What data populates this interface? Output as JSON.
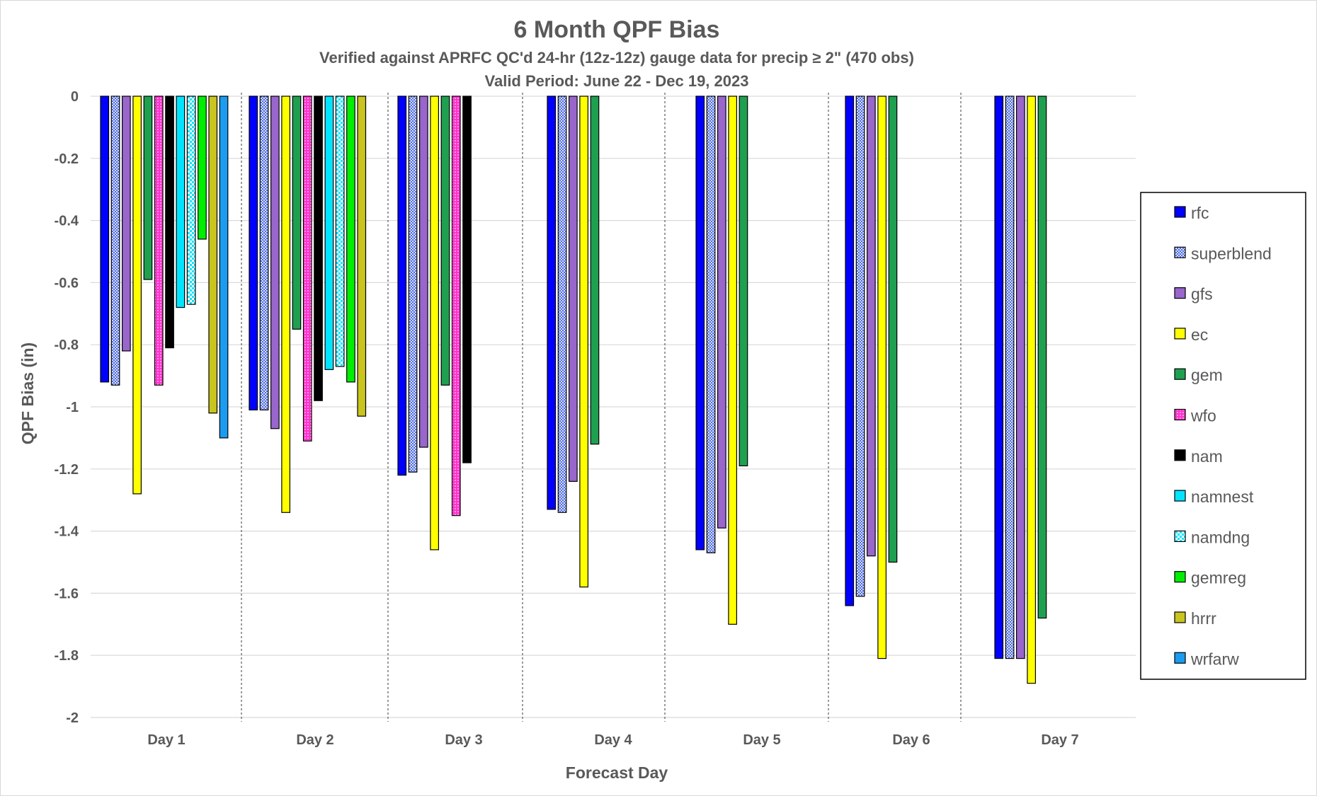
{
  "chart_data": {
    "type": "bar",
    "title": "6 Month QPF Bias",
    "subtitle": "Verified against APRFC QC'd 24-hr (12z-12z) gauge data for precip ≥ 2\" (470 obs)",
    "subtitle2": "Valid Period: June 22 - Dec 19, 2023",
    "xlabel": "Forecast Day",
    "ylabel": "QPF Bias (in)",
    "ylim": [
      -2,
      0
    ],
    "yticks": [
      "0",
      "-0.2",
      "-0.4",
      "-0.6",
      "-0.8",
      "-1",
      "-1.2",
      "-1.4",
      "-1.6",
      "-1.8",
      "-2"
    ],
    "categories": [
      "Day 1",
      "Day 2",
      "Day 3",
      "Day 4",
      "Day 5",
      "Day 6",
      "Day 7"
    ],
    "grid": true,
    "legend_position": "right",
    "series": [
      {
        "name": "rfc",
        "color": "#0000ff",
        "pattern": "solid",
        "values": [
          -0.92,
          -1.01,
          -1.22,
          -1.33,
          -1.46,
          -1.64,
          -1.81
        ]
      },
      {
        "name": "superblend",
        "color": "#99ccff",
        "pattern": "crosshatch",
        "values": [
          -0.93,
          -1.01,
          -1.21,
          -1.34,
          -1.47,
          -1.61,
          -1.81
        ]
      },
      {
        "name": "gfs",
        "color": "#9966cc",
        "pattern": "solid",
        "values": [
          -0.82,
          -1.07,
          -1.13,
          -1.24,
          -1.39,
          -1.48,
          -1.81
        ]
      },
      {
        "name": "ec",
        "color": "#ffff00",
        "pattern": "solid",
        "values": [
          -1.28,
          -1.34,
          -1.46,
          -1.58,
          -1.7,
          -1.81,
          -1.89
        ]
      },
      {
        "name": "gem",
        "color": "#1fa050",
        "pattern": "solid",
        "values": [
          -0.59,
          -0.75,
          -0.93,
          -1.12,
          -1.19,
          -1.5,
          -1.68
        ]
      },
      {
        "name": "wfo",
        "color": "#ff33cc",
        "pattern": "dots",
        "values": [
          -0.93,
          -1.11,
          -1.35,
          null,
          null,
          null,
          null
        ]
      },
      {
        "name": "nam",
        "color": "#000000",
        "pattern": "solid",
        "values": [
          -0.81,
          -0.98,
          -1.18,
          null,
          null,
          null,
          null
        ]
      },
      {
        "name": "namnest",
        "color": "#00e5ff",
        "pattern": "solid",
        "values": [
          -0.68,
          -0.88,
          null,
          null,
          null,
          null,
          null
        ]
      },
      {
        "name": "namdng",
        "color": "#00e5ff",
        "pattern": "checker",
        "values": [
          -0.67,
          -0.87,
          null,
          null,
          null,
          null,
          null
        ]
      },
      {
        "name": "gemreg",
        "color": "#00ee00",
        "pattern": "solid",
        "values": [
          -0.46,
          -0.92,
          null,
          null,
          null,
          null,
          null
        ]
      },
      {
        "name": "hrrr",
        "color": "#c9c41e",
        "pattern": "solid",
        "values": [
          -1.02,
          -1.03,
          null,
          null,
          null,
          null,
          null
        ]
      },
      {
        "name": "wrfarw",
        "color": "#1b9cf0",
        "pattern": "solid",
        "values": [
          -1.1,
          null,
          null,
          null,
          null,
          null,
          null
        ]
      }
    ]
  }
}
